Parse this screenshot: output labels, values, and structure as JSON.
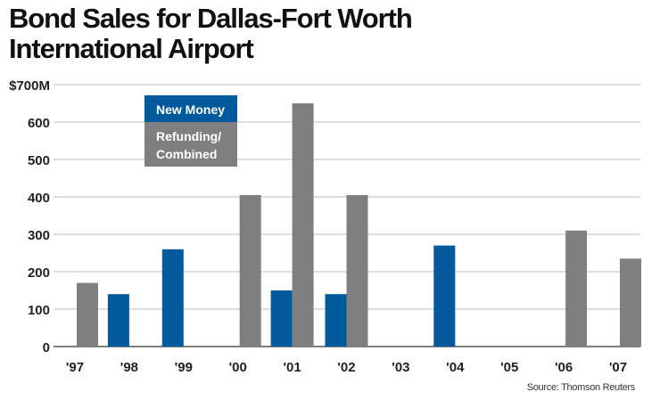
{
  "chart_data": {
    "type": "bar",
    "title": "Bond Sales for Dallas-Fort Worth International Airport",
    "title_lines": [
      "Bond Sales for Dallas-Fort Worth",
      "International Airport"
    ],
    "categories": [
      "'97",
      "'98",
      "'99",
      "'00",
      "'01",
      "'02",
      "'03",
      "'04",
      "'05",
      "'06",
      "'07"
    ],
    "series": [
      {
        "name": "New Money",
        "color": "#005a9c",
        "values": [
          null,
          140,
          260,
          null,
          150,
          140,
          null,
          270,
          null,
          null,
          null
        ]
      },
      {
        "name": "Refunding/ Combined",
        "color": "#7f7f82",
        "values": [
          170,
          null,
          null,
          405,
          650,
          405,
          null,
          null,
          null,
          310,
          235
        ]
      }
    ],
    "legend": {
      "items": [
        "New Money",
        "Refunding/",
        "Combined"
      ],
      "placement": "top-left"
    },
    "yticks": [
      "0",
      "100",
      "200",
      "300",
      "400",
      "500",
      "600",
      "$700M"
    ],
    "ylim": [
      0,
      700
    ],
    "grid": true,
    "xlabel": "",
    "ylabel": "",
    "source": "Source: Thomson Reuters"
  }
}
